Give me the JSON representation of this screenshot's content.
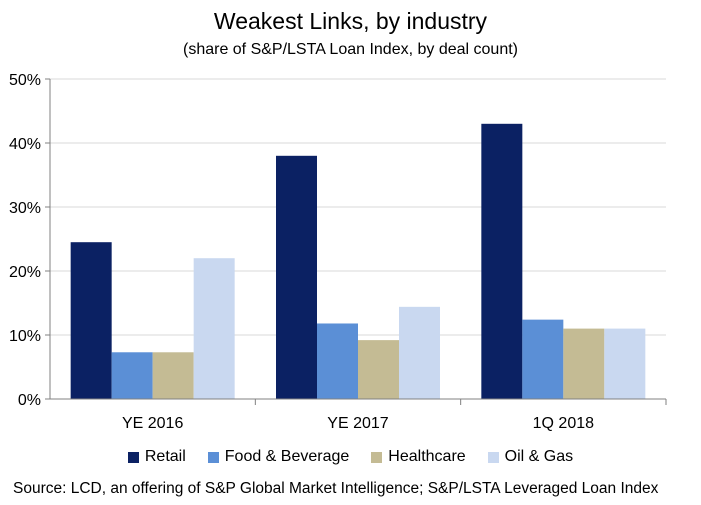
{
  "chart_data": {
    "type": "bar",
    "title": "Weakest Links, by industry",
    "subtitle": "(share of S&P/LSTA Loan Index, by deal count)",
    "categories": [
      "YE 2016",
      "YE 2017",
      "1Q 2018"
    ],
    "series": [
      {
        "name": "Retail",
        "values": [
          24.5,
          38.0,
          43.0
        ],
        "color": "#0b2163"
      },
      {
        "name": "Food & Beverage",
        "values": [
          7.3,
          11.8,
          12.4
        ],
        "color": "#5b8fd6"
      },
      {
        "name": "Healthcare",
        "values": [
          7.3,
          9.2,
          11.0
        ],
        "color": "#c4bb94"
      },
      {
        "name": "Oil & Gas",
        "values": [
          22.0,
          14.4,
          11.0
        ],
        "color": "#c9d8f0"
      }
    ],
    "yticks": [
      "0%",
      "10%",
      "20%",
      "30%",
      "40%",
      "50%"
    ],
    "ylim": [
      0,
      50
    ],
    "grid": true,
    "legend_position": "bottom",
    "source": "Source: LCD, an offering of S&P Global Market Intelligence;  S&P/LSTA Leveraged Loan Index"
  }
}
